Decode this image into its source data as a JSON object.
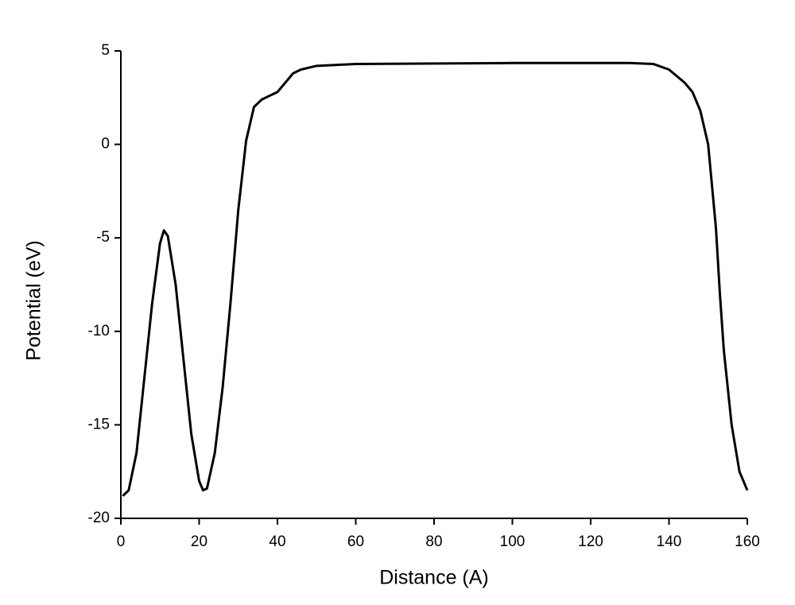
{
  "chart_data": {
    "type": "line",
    "xlabel": "Distance (A)",
    "ylabel": "Potential (eV)",
    "x": [
      0.5,
      2,
      4,
      6,
      8,
      10,
      11,
      12,
      14,
      16,
      18,
      20,
      21,
      22,
      24,
      26,
      28,
      30,
      32,
      34,
      36,
      38,
      40,
      42,
      44,
      46,
      50,
      60,
      100,
      130,
      136,
      140,
      144,
      146,
      148,
      150,
      152,
      153,
      154,
      156,
      158,
      160
    ],
    "series": [
      {
        "name": "Potential",
        "color": "#000000",
        "values": [
          -18.8,
          -18.5,
          -16.5,
          -12.5,
          -8.5,
          -5.3,
          -4.6,
          -4.9,
          -7.5,
          -11.5,
          -15.5,
          -18.0,
          -18.5,
          -18.4,
          -16.5,
          -13,
          -8.5,
          -3.5,
          0.2,
          2.0,
          2.4,
          2.6,
          2.8,
          3.3,
          3.8,
          4.0,
          4.2,
          4.3,
          4.35,
          4.35,
          4.3,
          4.0,
          3.3,
          2.8,
          1.8,
          0,
          -4.5,
          -8,
          -11,
          -15,
          -17.5,
          -18.5
        ]
      }
    ],
    "xlim": [
      0,
      160
    ],
    "xticks": [
      0,
      20,
      40,
      60,
      80,
      100,
      120,
      140,
      160
    ],
    "ylim": [
      -20,
      5
    ],
    "yticks": [
      -20,
      -15,
      -10,
      -5,
      0,
      5
    ]
  }
}
